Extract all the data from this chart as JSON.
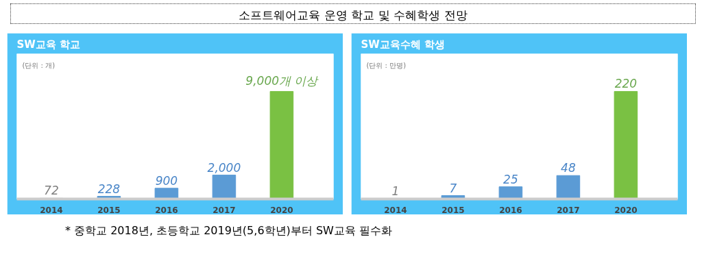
{
  "chart_data": [
    {
      "type": "other",
      "title": "소프트웨어교육 운영 학교 및 수혜학생 전망",
      "annotations": [
        "* 중학교 2018년, 초등학교 2019년(5,6학년)부터 SW교육 필수화"
      ]
    },
    {
      "type": "bar",
      "title": "SW교육 학교",
      "annotations": [
        "(단위 : 개)"
      ],
      "categories": [
        "2014",
        "2015",
        "2016",
        "2017",
        "2020"
      ],
      "values": [
        72,
        228,
        900,
        2000,
        9000
      ],
      "colors": [
        "#d9d9d9",
        "#5b9bd5",
        "#5b9bd5",
        "#5b9bd5",
        "#7ac143"
      ],
      "value_labels": [
        "72",
        "228",
        "900",
        "2,000",
        "9,000개 이상"
      ]
    },
    {
      "type": "bar",
      "title": "SW교육수혜 학생",
      "annotations": [
        "(단위 : 만명)"
      ],
      "categories": [
        "2014",
        "2015",
        "2016",
        "2017",
        "2020"
      ],
      "values": [
        1,
        7,
        25,
        48,
        220
      ],
      "colors": [
        "#d9d9d9",
        "#5b9bd5",
        "#5b9bd5",
        "#5b9bd5",
        "#7ac143"
      ],
      "data_labels": true
    }
  ]
}
